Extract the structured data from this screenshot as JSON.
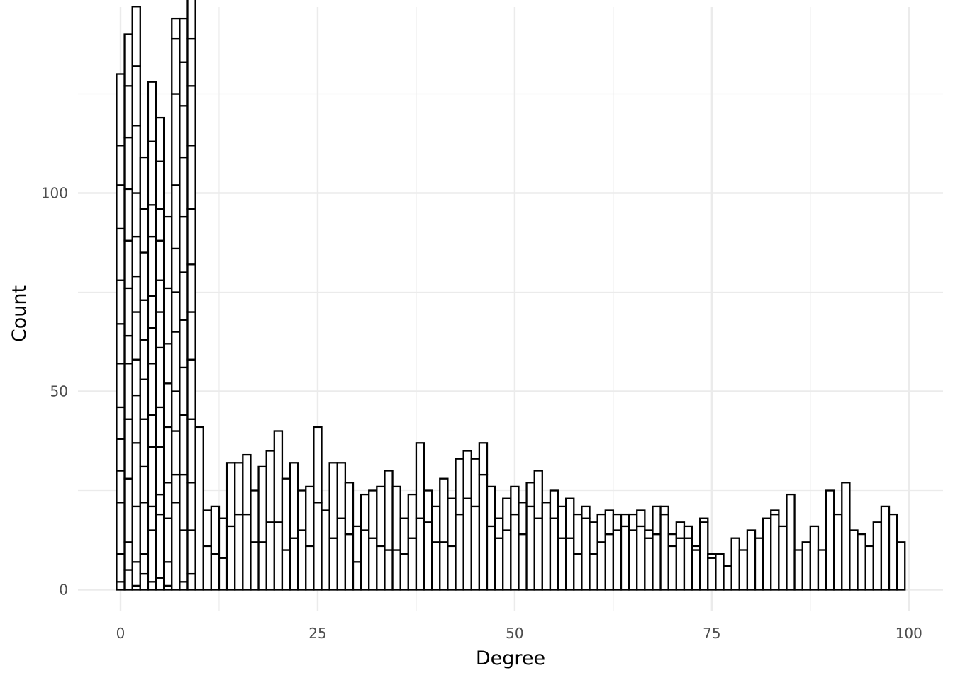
{
  "chart_data": {
    "type": "bar",
    "subtype": "histogram",
    "title": "",
    "xlabel": "Degree",
    "ylabel": "Count",
    "xlim": [
      -1,
      100
    ],
    "ylim": [
      -5,
      140
    ],
    "x_ticks": [
      0,
      25,
      50,
      75,
      100
    ],
    "y_ticks": [
      0,
      50,
      100
    ],
    "grid": true,
    "bar_fill": "#ffffff",
    "bar_stroke": "#000000",
    "grid_color": "#ebebeb",
    "bins": [
      {
        "x": 0,
        "segments": [
          2,
          7,
          13,
          8,
          8,
          8,
          11,
          10,
          11,
          13,
          11,
          10,
          18
        ]
      },
      {
        "x": 1,
        "segments": [
          5,
          7,
          16,
          15,
          14,
          7,
          12,
          12,
          13,
          13,
          13,
          13
        ]
      },
      {
        "x": 2,
        "segments": [
          1,
          6,
          14,
          16,
          12,
          9,
          12,
          9,
          10,
          11,
          17,
          15,
          15
        ]
      },
      {
        "x": 3,
        "segments": [
          4,
          5,
          13,
          9,
          12,
          10,
          10,
          10,
          12,
          11,
          13
        ]
      },
      {
        "x": 4,
        "segments": [
          2,
          13,
          6,
          15,
          8,
          13,
          9,
          8,
          15,
          8,
          16,
          15
        ]
      },
      {
        "x": 5,
        "segments": [
          3,
          16,
          5,
          12,
          10,
          15,
          9,
          8,
          10,
          8,
          12,
          11
        ]
      },
      {
        "x": 6,
        "segments": [
          1,
          6,
          11,
          9,
          14,
          11,
          10,
          14,
          18
        ]
      },
      {
        "x": 7,
        "segments": [
          22,
          7,
          11,
          10,
          15,
          10,
          11,
          16,
          23,
          14,
          5
        ]
      },
      {
        "x": 8,
        "segments": [
          2,
          13,
          14,
          15,
          12,
          12,
          12,
          14,
          15,
          13,
          11,
          11
        ]
      },
      {
        "x": 9,
        "segments": [
          4,
          11,
          12,
          16,
          15,
          12,
          12,
          14,
          16,
          15,
          12,
          10
        ]
      },
      {
        "x": 10,
        "segments": [
          41
        ]
      },
      {
        "x": 11,
        "segments": [
          11,
          9
        ]
      },
      {
        "x": 12,
        "segments": [
          9,
          12
        ]
      },
      {
        "x": 13,
        "segments": [
          8,
          10
        ]
      },
      {
        "x": 14,
        "segments": [
          16,
          16
        ]
      },
      {
        "x": 15,
        "segments": [
          19,
          13
        ]
      },
      {
        "x": 16,
        "segments": [
          19,
          15
        ]
      },
      {
        "x": 17,
        "segments": [
          12,
          13
        ]
      },
      {
        "x": 18,
        "segments": [
          12,
          19
        ]
      },
      {
        "x": 19,
        "segments": [
          17,
          18
        ]
      },
      {
        "x": 20,
        "segments": [
          17,
          23
        ]
      },
      {
        "x": 21,
        "segments": [
          10,
          18
        ]
      },
      {
        "x": 22,
        "segments": [
          13,
          19
        ]
      },
      {
        "x": 23,
        "segments": [
          15,
          10
        ]
      },
      {
        "x": 24,
        "segments": [
          11,
          15
        ]
      },
      {
        "x": 25,
        "segments": [
          22,
          19
        ]
      },
      {
        "x": 26,
        "segments": [
          20
        ]
      },
      {
        "x": 27,
        "segments": [
          13,
          19
        ]
      },
      {
        "x": 28,
        "segments": [
          18,
          14
        ]
      },
      {
        "x": 29,
        "segments": [
          14,
          13
        ]
      },
      {
        "x": 30,
        "segments": [
          7,
          9
        ]
      },
      {
        "x": 31,
        "segments": [
          15,
          9
        ]
      },
      {
        "x": 32,
        "segments": [
          13,
          12
        ]
      },
      {
        "x": 33,
        "segments": [
          11,
          15
        ]
      },
      {
        "x": 34,
        "segments": [
          10,
          20
        ]
      },
      {
        "x": 35,
        "segments": [
          10,
          16
        ]
      },
      {
        "x": 36,
        "segments": [
          9,
          9
        ]
      },
      {
        "x": 37,
        "segments": [
          13,
          11
        ]
      },
      {
        "x": 38,
        "segments": [
          18,
          19
        ]
      },
      {
        "x": 39,
        "segments": [
          17,
          8
        ]
      },
      {
        "x": 40,
        "segments": [
          12,
          9
        ]
      },
      {
        "x": 41,
        "segments": [
          12,
          16
        ]
      },
      {
        "x": 42,
        "segments": [
          11,
          12
        ]
      },
      {
        "x": 43,
        "segments": [
          19,
          14
        ]
      },
      {
        "x": 44,
        "segments": [
          23,
          12
        ]
      },
      {
        "x": 45,
        "segments": [
          21,
          12
        ]
      },
      {
        "x": 46,
        "segments": [
          29,
          8
        ]
      },
      {
        "x": 47,
        "segments": [
          16,
          10
        ]
      },
      {
        "x": 48,
        "segments": [
          13,
          5
        ]
      },
      {
        "x": 49,
        "segments": [
          15,
          8
        ]
      },
      {
        "x": 50,
        "segments": [
          19,
          7
        ]
      },
      {
        "x": 51,
        "segments": [
          14,
          8
        ]
      },
      {
        "x": 52,
        "segments": [
          21,
          6
        ]
      },
      {
        "x": 53,
        "segments": [
          18,
          12
        ]
      },
      {
        "x": 54,
        "segments": [
          22
        ]
      },
      {
        "x": 55,
        "segments": [
          18,
          7
        ]
      },
      {
        "x": 56,
        "segments": [
          13,
          8
        ]
      },
      {
        "x": 57,
        "segments": [
          13,
          10
        ]
      },
      {
        "x": 58,
        "segments": [
          9,
          10
        ]
      },
      {
        "x": 59,
        "segments": [
          18,
          3
        ]
      },
      {
        "x": 60,
        "segments": [
          9,
          8
        ]
      },
      {
        "x": 61,
        "segments": [
          12,
          7
        ]
      },
      {
        "x": 62,
        "segments": [
          14,
          6
        ]
      },
      {
        "x": 63,
        "segments": [
          15,
          4
        ]
      },
      {
        "x": 64,
        "segments": [
          16,
          3
        ]
      },
      {
        "x": 65,
        "segments": [
          15,
          4
        ]
      },
      {
        "x": 66,
        "segments": [
          16,
          4
        ]
      },
      {
        "x": 67,
        "segments": [
          13,
          2
        ]
      },
      {
        "x": 68,
        "segments": [
          14,
          7
        ]
      },
      {
        "x": 69,
        "segments": [
          19,
          2
        ]
      },
      {
        "x": 70,
        "segments": [
          11,
          3
        ]
      },
      {
        "x": 71,
        "segments": [
          13,
          4
        ]
      },
      {
        "x": 72,
        "segments": [
          13,
          3
        ]
      },
      {
        "x": 73,
        "segments": [
          10,
          1
        ]
      },
      {
        "x": 74,
        "segments": [
          17,
          1
        ]
      },
      {
        "x": 75,
        "segments": [
          8,
          1
        ]
      },
      {
        "x": 76,
        "segments": [
          9
        ]
      },
      {
        "x": 77,
        "segments": [
          6
        ]
      },
      {
        "x": 78,
        "segments": [
          13
        ]
      },
      {
        "x": 79,
        "segments": [
          10
        ]
      },
      {
        "x": 80,
        "segments": [
          15
        ]
      },
      {
        "x": 81,
        "segments": [
          13
        ]
      },
      {
        "x": 82,
        "segments": [
          18
        ]
      },
      {
        "x": 83,
        "segments": [
          19,
          1
        ]
      },
      {
        "x": 84,
        "segments": [
          16
        ]
      },
      {
        "x": 85,
        "segments": [
          24
        ]
      },
      {
        "x": 86,
        "segments": [
          10
        ]
      },
      {
        "x": 87,
        "segments": [
          12
        ]
      },
      {
        "x": 88,
        "segments": [
          16
        ]
      },
      {
        "x": 89,
        "segments": [
          10
        ]
      },
      {
        "x": 90,
        "segments": [
          25
        ]
      },
      {
        "x": 91,
        "segments": [
          19
        ]
      },
      {
        "x": 92,
        "segments": [
          27
        ]
      },
      {
        "x": 93,
        "segments": [
          15
        ]
      },
      {
        "x": 94,
        "segments": [
          14
        ]
      },
      {
        "x": 95,
        "segments": [
          11
        ]
      },
      {
        "x": 96,
        "segments": [
          17
        ]
      },
      {
        "x": 97,
        "segments": [
          21
        ]
      },
      {
        "x": 98,
        "segments": [
          19
        ]
      },
      {
        "x": 99,
        "segments": [
          12
        ]
      }
    ]
  }
}
